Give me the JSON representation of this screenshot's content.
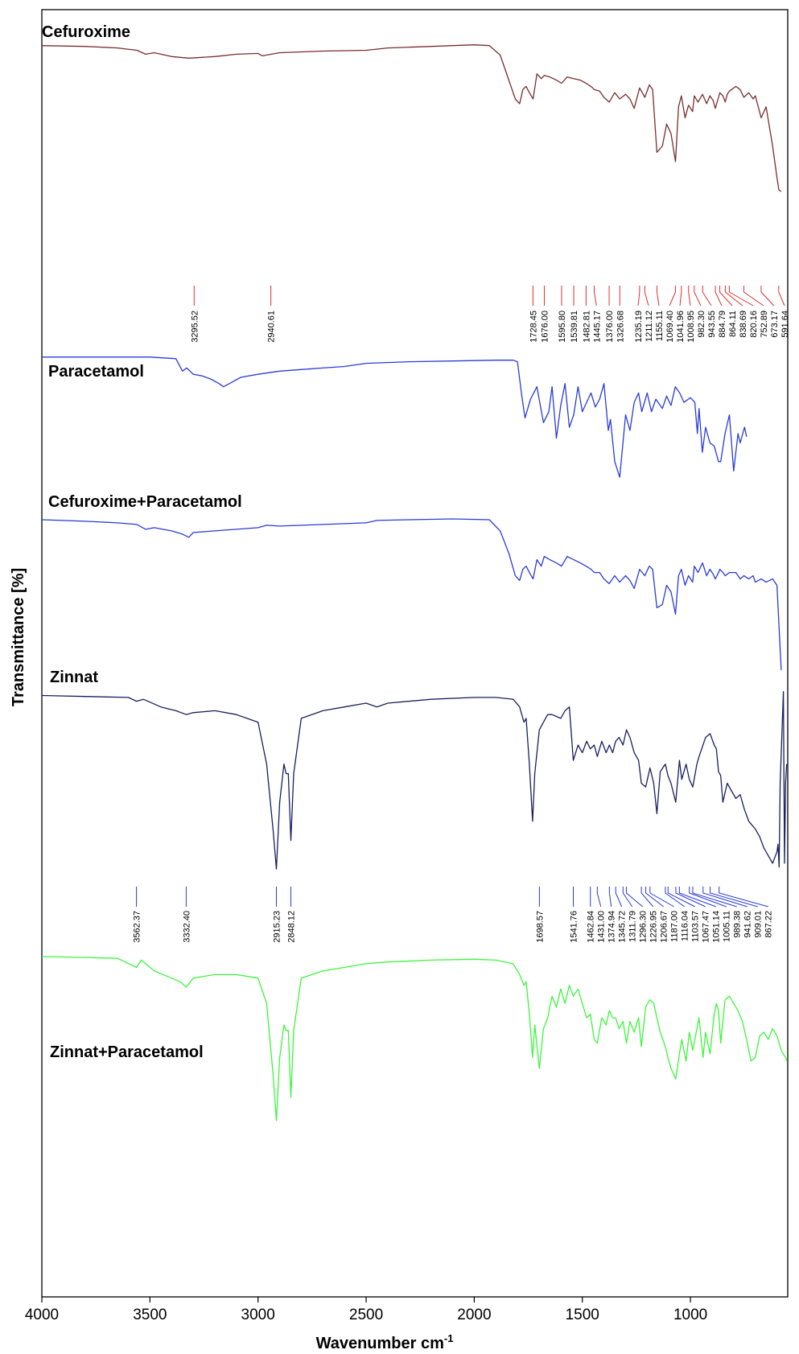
{
  "chart_data": {
    "type": "line",
    "title": "",
    "xlabel": "Wavenumber cm",
    "xlabel_sup": "-1",
    "ylabel": "Transmittance [%]",
    "xlim": [
      4000,
      550
    ],
    "x_ticks": [
      4000,
      3500,
      3000,
      2500,
      2000,
      1500,
      1000
    ],
    "grid": false,
    "series": [
      {
        "name": "Cefuroxime",
        "color": "#7a2e2e",
        "x": [
          4000,
          3800,
          3650,
          3560,
          3520,
          3480,
          3400,
          3320,
          3200,
          3100,
          3000,
          2980,
          2900,
          2700,
          2500,
          2400,
          2200,
          2000,
          1930,
          1880,
          1840,
          1810,
          1790,
          1775,
          1760,
          1745,
          1728,
          1710,
          1690,
          1676,
          1650,
          1620,
          1596,
          1570,
          1540,
          1510,
          1483,
          1460,
          1445,
          1420,
          1400,
          1376,
          1350,
          1327,
          1300,
          1280,
          1260,
          1235,
          1211,
          1190,
          1175,
          1155,
          1130,
          1110,
          1090,
          1069,
          1055,
          1042,
          1025,
          1009,
          990,
          982,
          965,
          944,
          925,
          910,
          895,
          885,
          870,
          864,
          850,
          839,
          830,
          820,
          790,
          770,
          753,
          730,
          710,
          700,
          673,
          650,
          620,
          600,
          591,
          580
        ],
        "y": [
          94,
          93.5,
          92.5,
          91,
          88.5,
          89.5,
          87,
          86,
          87,
          88.5,
          89,
          87.5,
          89.5,
          90.5,
          91,
          92.5,
          93.5,
          94.5,
          94,
          88,
          72,
          60,
          57,
          66,
          68,
          64,
          60,
          76,
          73,
          75,
          74,
          72,
          70,
          74,
          73,
          72,
          70,
          68,
          66,
          65,
          61,
          58,
          64,
          60,
          63,
          60,
          54,
          67,
          61,
          69,
          66,
          26,
          30,
          44,
          38,
          20,
          55,
          62,
          48,
          56,
          52,
          62,
          58,
          63,
          57,
          62,
          59,
          54,
          61,
          64,
          62,
          58,
          63,
          65,
          68,
          66,
          61,
          64,
          60,
          62,
          48,
          55,
          30,
          10,
          2,
          1
        ]
      },
      {
        "name": "Paracetamol",
        "color": "#2a3bd8",
        "x": [
          4000,
          3500,
          3380,
          3350,
          3330,
          3300,
          3260,
          3220,
          3180,
          3160,
          3120,
          3080,
          3000,
          2900,
          2800,
          2700,
          2600,
          2500,
          2300,
          2100,
          1900,
          1820,
          1800,
          1780,
          1765,
          1740,
          1710,
          1680,
          1655,
          1640,
          1620,
          1600,
          1580,
          1560,
          1540,
          1520,
          1500,
          1480,
          1460,
          1440,
          1420,
          1400,
          1380,
          1370,
          1350,
          1327,
          1300,
          1280,
          1260,
          1240,
          1225,
          1200,
          1180,
          1160,
          1130,
          1110,
          1090,
          1070,
          1050,
          1030,
          1000,
          980,
          968,
          960,
          945,
          930,
          910,
          890,
          870,
          860,
          840,
          820,
          800,
          780,
          770,
          750,
          740
        ],
        "y": [
          97,
          97,
          96,
          88,
          90,
          86,
          85,
          83,
          80,
          78,
          81,
          84,
          86,
          88,
          89,
          90,
          91,
          93,
          94,
          94.5,
          95,
          95,
          94,
          72,
          58,
          70,
          78,
          55,
          62,
          78,
          45,
          66,
          80,
          52,
          60,
          78,
          62,
          68,
          74,
          65,
          70,
          80,
          50,
          57,
          30,
          20,
          60,
          50,
          68,
          74,
          62,
          74,
          62,
          70,
          64,
          72,
          66,
          78,
          74,
          68,
          71,
          68,
          48,
          64,
          36,
          52,
          42,
          40,
          30,
          30,
          48,
          60,
          24,
          48,
          42,
          52,
          46
        ]
      },
      {
        "name": "Cefuroxime+Paracetamol",
        "color": "#2a3bd8",
        "x": [
          4000,
          3800,
          3650,
          3560,
          3520,
          3480,
          3400,
          3350,
          3320,
          3300,
          3200,
          3100,
          3000,
          2960,
          2900,
          2700,
          2500,
          2450,
          2300,
          2100,
          1930,
          1880,
          1840,
          1810,
          1790,
          1775,
          1760,
          1745,
          1728,
          1710,
          1690,
          1676,
          1650,
          1620,
          1596,
          1570,
          1540,
          1510,
          1483,
          1460,
          1445,
          1420,
          1400,
          1376,
          1350,
          1327,
          1300,
          1280,
          1260,
          1235,
          1211,
          1190,
          1175,
          1155,
          1130,
          1110,
          1090,
          1069,
          1055,
          1042,
          1025,
          1009,
          990,
          982,
          965,
          944,
          925,
          910,
          895,
          885,
          870,
          864,
          850,
          839,
          820,
          790,
          770,
          753,
          730,
          710,
          700,
          673,
          650,
          620,
          600,
          591,
          580
        ],
        "y": [
          95,
          94,
          93,
          92,
          89,
          90,
          88,
          86,
          84,
          87,
          88,
          89,
          90,
          91.5,
          91,
          92,
          93,
          94.5,
          95,
          95.5,
          95,
          88,
          74,
          60,
          57,
          64,
          66,
          62,
          58,
          70,
          66,
          72,
          70,
          68,
          66,
          72,
          70,
          68,
          66,
          64,
          62,
          62,
          58,
          55,
          60,
          56,
          60,
          57,
          52,
          64,
          60,
          66,
          64,
          40,
          42,
          54,
          50,
          36,
          60,
          64,
          54,
          60,
          56,
          66,
          62,
          68,
          60,
          64,
          61,
          58,
          62,
          64,
          62,
          60,
          62,
          62,
          58,
          60,
          58,
          60,
          56,
          58,
          56,
          58,
          54,
          30,
          1
        ]
      },
      {
        "name": "Zinnat",
        "color": "#1a1f5e",
        "x": [
          4000,
          3800,
          3600,
          3562,
          3530,
          3450,
          3380,
          3332,
          3300,
          3200,
          3100,
          3000,
          2960,
          2930,
          2915,
          2900,
          2880,
          2870,
          2860,
          2848,
          2835,
          2800,
          2700,
          2600,
          2500,
          2450,
          2400,
          2200,
          2000,
          1900,
          1820,
          1790,
          1770,
          1760,
          1745,
          1730,
          1720,
          1699,
          1680,
          1660,
          1640,
          1600,
          1580,
          1560,
          1542,
          1520,
          1500,
          1480,
          1463,
          1445,
          1431,
          1410,
          1390,
          1375,
          1360,
          1346,
          1330,
          1312,
          1296,
          1280,
          1260,
          1240,
          1227,
          1207,
          1187,
          1170,
          1155,
          1140,
          1116,
          1104,
          1090,
          1068,
          1051,
          1040,
          1020,
          1005,
          989,
          970,
          960,
          942,
          930,
          909,
          890,
          880,
          870,
          860,
          850,
          830,
          810,
          790,
          770,
          750,
          730,
          700,
          680,
          660,
          640,
          620,
          600,
          595,
          590,
          585,
          570,
          565,
          560,
          555
        ],
        "y": [
          96,
          95.5,
          95,
          93,
          94,
          90,
          88,
          86,
          87,
          88,
          86,
          82,
          60,
          25,
          5,
          40,
          60,
          55,
          55,
          20,
          55,
          84,
          88,
          90,
          92,
          90,
          92,
          94,
          95,
          95,
          94,
          90,
          82,
          84,
          60,
          30,
          55,
          78,
          82,
          86,
          86,
          84,
          88,
          90,
          62,
          70,
          66,
          72,
          68,
          70,
          64,
          72,
          66,
          70,
          66,
          72,
          74,
          70,
          78,
          74,
          66,
          62,
          50,
          48,
          58,
          50,
          34,
          56,
          60,
          54,
          50,
          40,
          62,
          52,
          60,
          52,
          48,
          60,
          64,
          70,
          74,
          76,
          70,
          68,
          56,
          54,
          40,
          50,
          46,
          42,
          44,
          36,
          30,
          26,
          22,
          16,
          12,
          8,
          14,
          18,
          6,
          50,
          98,
          8,
          50,
          60
        ]
      },
      {
        "name": "Zinnat+Paracetamol",
        "color": "#3df53d",
        "x": [
          4000,
          3800,
          3650,
          3562,
          3540,
          3480,
          3400,
          3360,
          3332,
          3300,
          3200,
          3100,
          3000,
          2960,
          2930,
          2915,
          2900,
          2880,
          2870,
          2860,
          2848,
          2835,
          2800,
          2700,
          2600,
          2500,
          2400,
          2200,
          2000,
          1900,
          1820,
          1790,
          1770,
          1760,
          1745,
          1730,
          1720,
          1699,
          1680,
          1660,
          1640,
          1620,
          1600,
          1580,
          1560,
          1542,
          1520,
          1500,
          1480,
          1463,
          1445,
          1431,
          1410,
          1390,
          1375,
          1360,
          1346,
          1330,
          1312,
          1296,
          1280,
          1260,
          1240,
          1227,
          1207,
          1187,
          1170,
          1155,
          1140,
          1116,
          1104,
          1090,
          1068,
          1051,
          1040,
          1020,
          1005,
          989,
          970,
          960,
          942,
          930,
          909,
          890,
          880,
          870,
          860,
          840,
          820,
          800,
          780,
          760,
          740,
          720,
          700,
          680,
          660,
          640,
          620,
          600,
          580,
          560,
          555
        ],
        "y": [
          96,
          95.5,
          95,
          90,
          94,
          88,
          84,
          82,
          79,
          84,
          86,
          86,
          84,
          70,
          30,
          5,
          40,
          58,
          55,
          55,
          18,
          55,
          84,
          88,
          90,
          92,
          93,
          94,
          94.5,
          94,
          92,
          86,
          80,
          82,
          64,
          40,
          58,
          34,
          56,
          62,
          74,
          68,
          78,
          70,
          80,
          74,
          78,
          70,
          62,
          64,
          50,
          48,
          62,
          58,
          66,
          62,
          62,
          56,
          60,
          48,
          60,
          54,
          62,
          46,
          68,
          72,
          70,
          62,
          54,
          46,
          40,
          34,
          28,
          42,
          50,
          38,
          54,
          44,
          56,
          62,
          40,
          54,
          42,
          64,
          70,
          66,
          48,
          72,
          74,
          70,
          66,
          60,
          50,
          38,
          40,
          52,
          54,
          50,
          56,
          52,
          44,
          40,
          38
        ]
      }
    ],
    "peak_markers": [
      {
        "series": "Cefuroxime",
        "color": "#e03030",
        "peaks": [
          "3295.52",
          "2940.61",
          "1728.45",
          "1676.00",
          "1595.80",
          "1539.81",
          "1482.81",
          "1445.17",
          "1376.00",
          "1326.68",
          "1235.19",
          "1211.12",
          "1155.11",
          "1069.40",
          "1041.96",
          "1008.95",
          "982.30",
          "943.55",
          "884.79",
          "864.11",
          "838.69",
          "820.16",
          "752.89",
          "673.17",
          "591.64"
        ]
      },
      {
        "series": "Zinnat",
        "color": "#2a3bd8",
        "peaks": [
          "3562.37",
          "3332.40",
          "2915.23",
          "2848.12",
          "1698.57",
          "1541.76",
          "1462.84",
          "1431.00",
          "1374.94",
          "1345.72",
          "1311.79",
          "1296.30",
          "1226.95",
          "1206.67",
          "1187.00",
          "1116.04",
          "1103.57",
          "1067.47",
          "1051.14",
          "1005.11",
          "989.38",
          "941.62",
          "909.01",
          "867.22"
        ]
      }
    ]
  }
}
